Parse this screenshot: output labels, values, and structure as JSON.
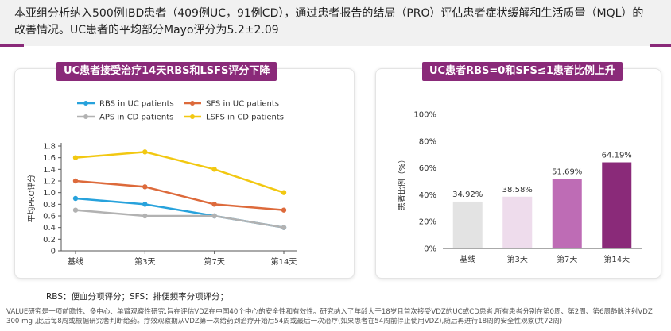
{
  "intro": {
    "line1": "本亚组分析纳入500例IBD患者（409例UC，91例CD），通过患者报告的结局（PRO）评估患者症状缓解和生活质量（MQL）的",
    "line2": "改善情况。UC患者的平均部分Mayo评分为5.2±2.09"
  },
  "chart_data": [
    {
      "type": "line",
      "title": "UC患者接受治疗14天RBS和LSFS评分下降",
      "ylabel": "平均PRO评分",
      "xlabel": "",
      "categories": [
        "基线",
        "第3天",
        "第7天",
        "第14天"
      ],
      "ylim": [
        0,
        1.8
      ],
      "yticks": [
        "0",
        "0.2",
        "0.4",
        "0.6",
        "0.8",
        "1.0",
        "1.2",
        "1.4",
        "1.6",
        "1.8"
      ],
      "grid": false,
      "legend": "top",
      "series": [
        {
          "name": "RBS in UC patients",
          "color": "#27a2dc",
          "values": [
            0.9,
            0.8,
            0.6,
            0.4
          ]
        },
        {
          "name": "SFS in UC patients",
          "color": "#dd6a3b",
          "values": [
            1.2,
            1.1,
            0.8,
            0.7
          ]
        },
        {
          "name": "APS in CD patients",
          "color": "#b2b2b2",
          "values": [
            0.7,
            0.6,
            0.6,
            0.4
          ]
        },
        {
          "name": "LSFS in CD patients",
          "color": "#f2c811",
          "values": [
            1.6,
            1.7,
            1.4,
            1.0
          ]
        }
      ]
    },
    {
      "type": "bar",
      "title": "UC患者RBS=0和SFS≤1患者比例上升",
      "ylabel": "患者比例（%）",
      "xlabel": "",
      "categories": [
        "基线",
        "第3天",
        "第7天",
        "第14天"
      ],
      "values": [
        34.92,
        38.58,
        51.69,
        64.19
      ],
      "value_labels": [
        "34.92%",
        "38.58%",
        "51.69%",
        "64.19%"
      ],
      "colors": [
        "#e3e3e3",
        "#eedcec",
        "#be6cb5",
        "#8a2a79"
      ],
      "ylim": [
        0,
        100
      ],
      "yticks": [
        "0%",
        "20%",
        "40%",
        "60%",
        "80%",
        "100%"
      ],
      "grid": false
    }
  ],
  "abbr": "RBS：便血分项评分；SFS：排便频率分项评分；",
  "footnote": "VALUE研究是一项前瞻性、多中心、单臂观察性研究,旨在评估VDZ在中国40个中心的安全性和有效性。研究纳入了年龄大于18岁且首次接受VDZ的UC或CD患者,所有患者分别在第0周、第2周、第6周静脉注射VDZ 300 mg ,此后每8周或根据研究者判断给药。疗效观察期从VDZ第一次给药到治疗开始后54周或最后一次治疗(如果患者在54周前停止使用VDZ),随后再进行18周的安全性观察(共72周)"
}
